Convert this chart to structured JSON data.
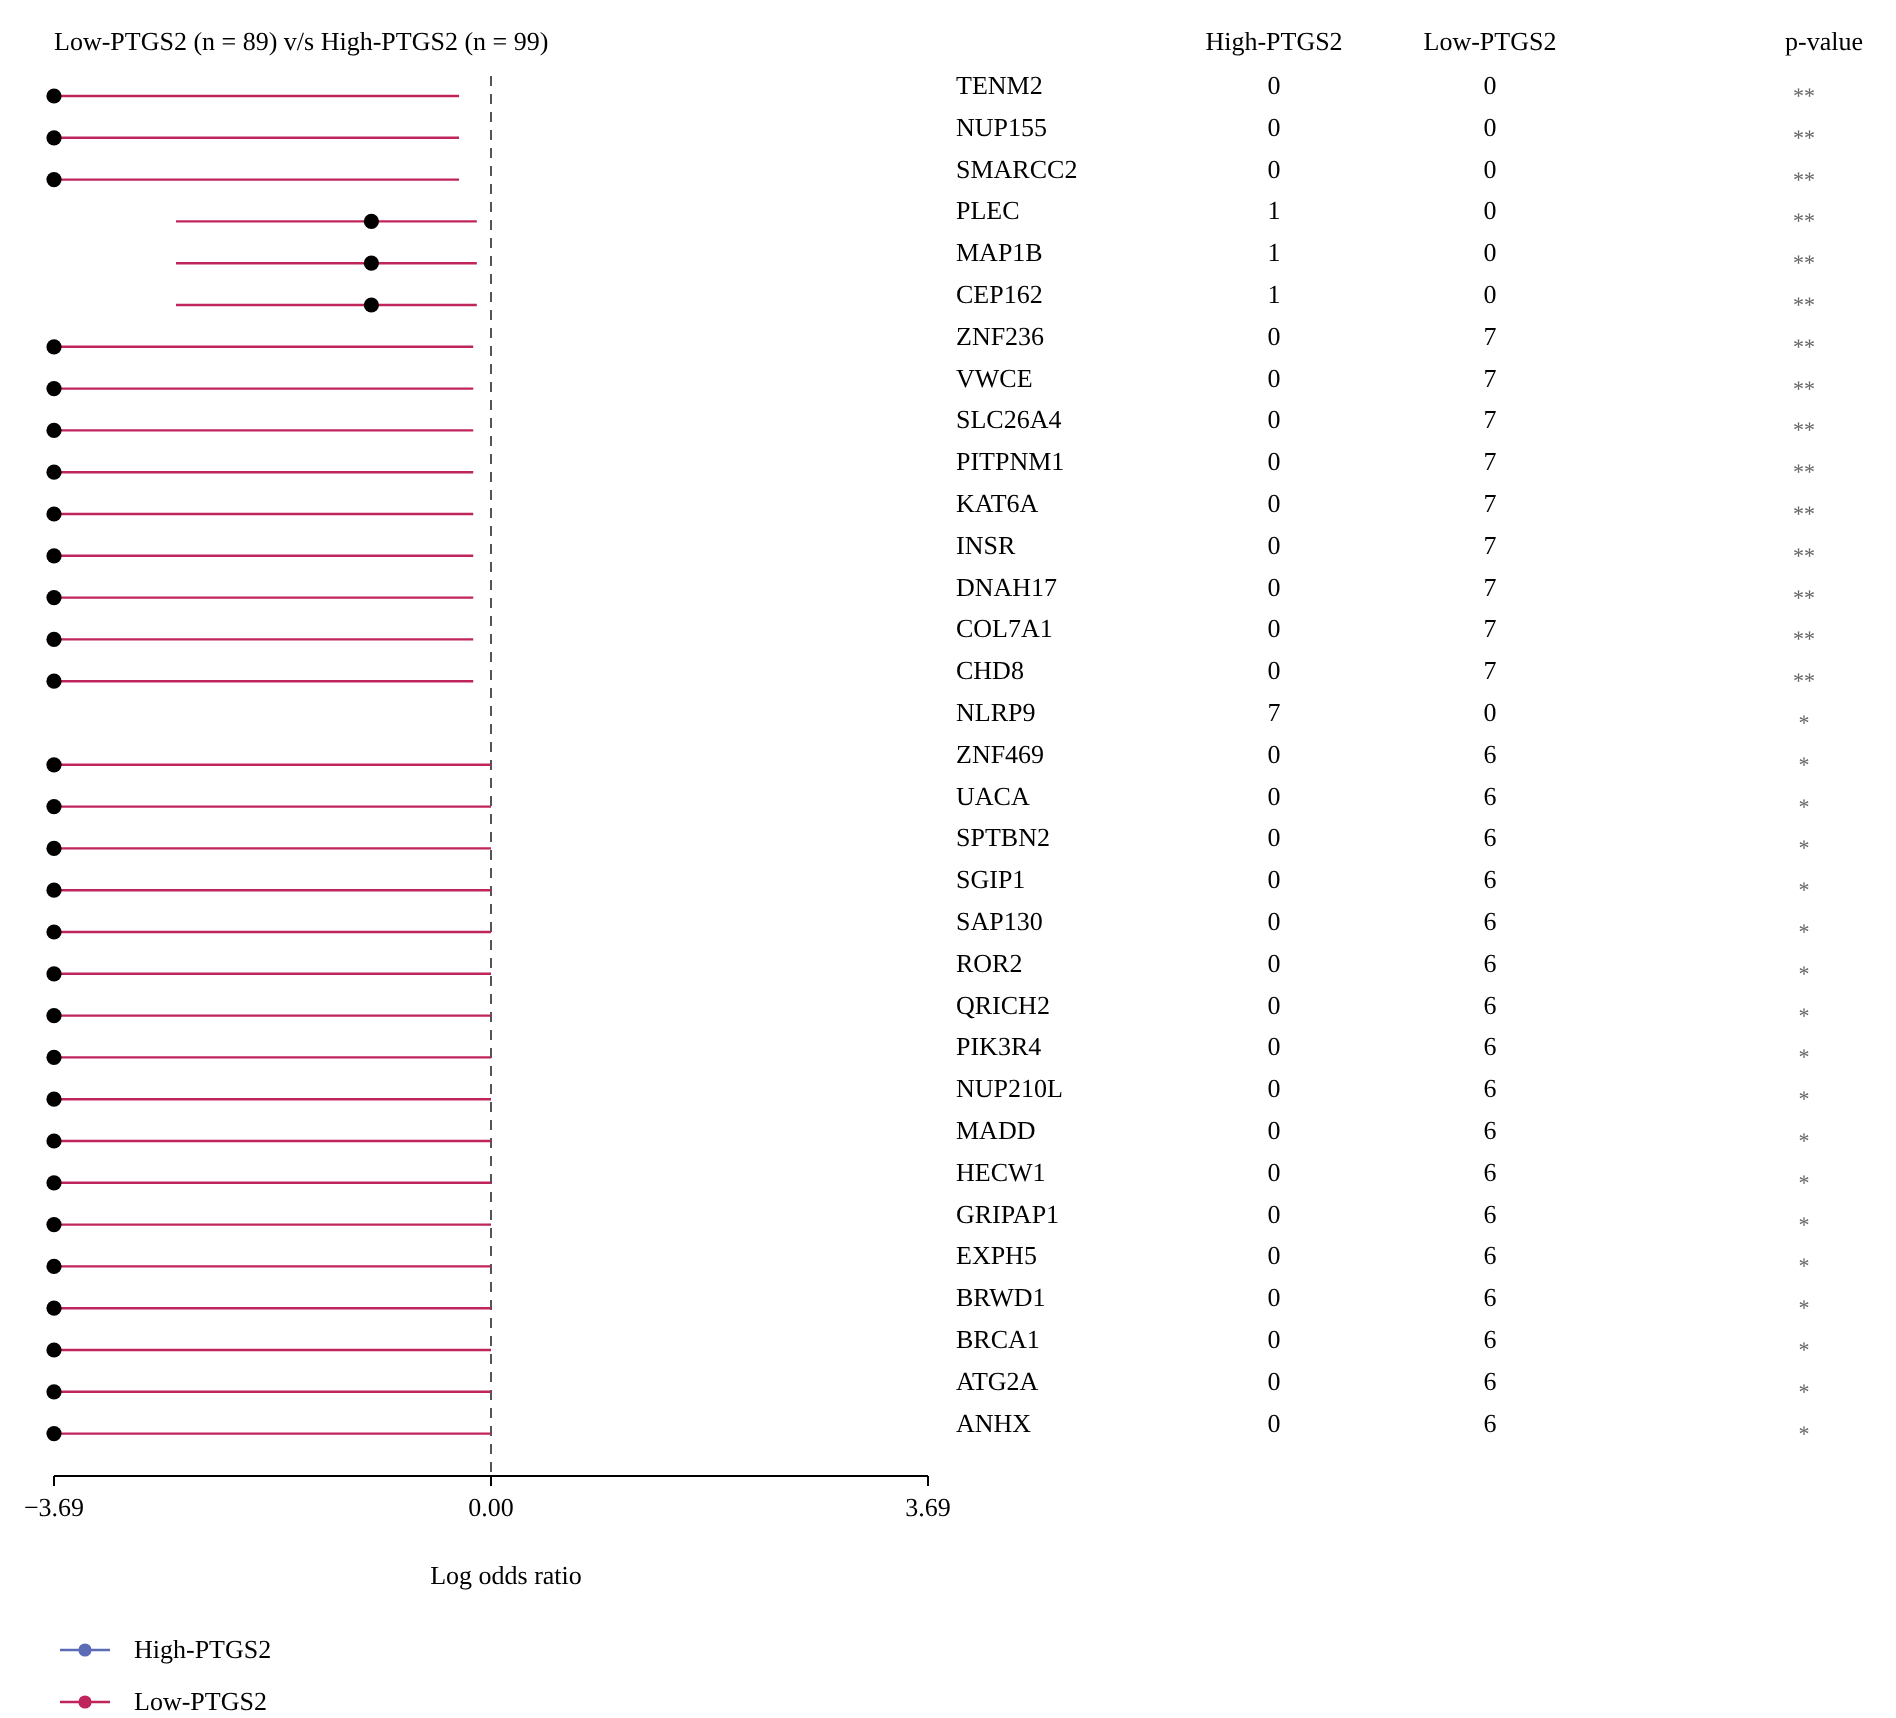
{
  "chart_data": {
    "type": "scatter",
    "orientation": "horizontal",
    "title": "Low-PTGS2 (n = 89) v/s High-PTGS2 (n = 99)",
    "xlabel": "Log odds ratio",
    "categories": [
      "TENM2",
      "NUP155",
      "SMARCC2",
      "PLEC",
      "MAP1B",
      "CEP162",
      "ZNF236",
      "VWCE",
      "SLC26A4",
      "PITPNM1",
      "KAT6A",
      "INSR",
      "DNAH17",
      "COL7A1",
      "CHD8",
      "NLRP9",
      "ZNF469",
      "UACA",
      "SPTBN2",
      "SGIP1",
      "SAP130",
      "ROR2",
      "QRICH2",
      "PIK3R4",
      "NUP210L",
      "MADD",
      "HECW1",
      "GRIPAP1",
      "EXPH5",
      "BRWD1",
      "BRCA1",
      "ATG2A",
      "ANHX"
    ],
    "series": [
      {
        "name": "High-PTGS2",
        "color": "#5b6bb5",
        "values": [
          null,
          null,
          null,
          null,
          null,
          null,
          null,
          null,
          null,
          null,
          null,
          null,
          null,
          null,
          null,
          null,
          null,
          null,
          null,
          null,
          null,
          null,
          null,
          null,
          null,
          null,
          null,
          null,
          null,
          null,
          null,
          null,
          null
        ]
      },
      {
        "name": "Low-PTGS2",
        "color": "#c0245c",
        "values": [
          -3.69,
          -3.69,
          -3.69,
          -1.01,
          -1.01,
          -1.01,
          -3.69,
          -3.69,
          -3.69,
          -3.69,
          -3.69,
          -3.69,
          -3.69,
          -3.69,
          -3.69,
          null,
          -3.69,
          -3.69,
          -3.69,
          -3.69,
          -3.69,
          -3.69,
          -3.69,
          -3.69,
          -3.69,
          -3.69,
          -3.69,
          -3.69,
          -3.69,
          -3.69,
          -3.69,
          -3.69,
          -3.69
        ],
        "colors": [
          "#000000",
          "#000000",
          "#000000",
          "#000000",
          "#000000",
          "#000000",
          "#000000",
          "#000000",
          "#000000",
          "#000000",
          "#000000",
          "#000000",
          "#000000",
          "#000000",
          "#000000",
          null,
          "#000000",
          "#000000",
          "#000000",
          "#000000",
          "#000000",
          "#000000",
          "#000000",
          "#000000",
          "#000000",
          "#000000",
          "#000000",
          "#000000",
          "#000000",
          "#000000",
          "#000000",
          "#000000",
          "#000000"
        ],
        "errors": [
          [
            -3.69,
            -0.27
          ],
          [
            -3.69,
            -0.27
          ],
          [
            -3.69,
            -0.27
          ],
          [
            -2.66,
            -0.12
          ],
          [
            -2.66,
            -0.12
          ],
          [
            -2.66,
            -0.12
          ],
          [
            -3.69,
            -0.15
          ],
          [
            -3.69,
            -0.15
          ],
          [
            -3.69,
            -0.15
          ],
          [
            -3.69,
            -0.15
          ],
          [
            -3.69,
            -0.15
          ],
          [
            -3.69,
            -0.15
          ],
          [
            -3.69,
            -0.15
          ],
          [
            -3.69,
            -0.15
          ],
          [
            -3.69,
            -0.15
          ],
          null,
          [
            -3.69,
            0
          ],
          [
            -3.69,
            0
          ],
          [
            -3.69,
            0
          ],
          [
            -3.69,
            0
          ],
          [
            -3.69,
            0
          ],
          [
            -3.69,
            0
          ],
          [
            -3.69,
            0
          ],
          [
            -3.69,
            0
          ],
          [
            -3.69,
            0
          ],
          [
            -3.69,
            0
          ],
          [
            -3.69,
            0
          ],
          [
            -3.69,
            0
          ],
          [
            -3.69,
            0
          ],
          [
            -3.69,
            0
          ],
          [
            -3.69,
            0
          ],
          [
            -3.69,
            0
          ],
          [
            -3.69,
            0
          ]
        ],
        "value_labels": [
          "**",
          "**",
          "**",
          "**",
          "**",
          "**",
          "**",
          "**",
          "**",
          "**",
          "**",
          "**",
          "**",
          "**",
          "**",
          "*",
          "*",
          "*",
          "*",
          "*",
          "*",
          "*",
          "*",
          "*",
          "*",
          "*",
          "*",
          "*",
          "*",
          "*",
          "*",
          "*",
          "*"
        ]
      }
    ],
    "annotations": [
      "High-PTGS2",
      "Low-PTGS2",
      "p-value",
      "0",
      "0",
      "0",
      "0",
      "0",
      "0",
      "1",
      "0",
      "1",
      "0",
      "1",
      "0",
      "0",
      "7",
      "0",
      "7",
      "0",
      "7",
      "0",
      "7",
      "0",
      "7",
      "0",
      "7",
      "0",
      "7",
      "0",
      "7",
      "0",
      "7",
      "7",
      "0",
      "0",
      "6",
      "0",
      "6",
      "0",
      "6",
      "0",
      "6",
      "0",
      "6",
      "0",
      "6",
      "0",
      "6",
      "0",
      "6",
      "0",
      "6",
      "0",
      "6",
      "0",
      "6",
      "0",
      "6",
      "0",
      "6",
      "0",
      "6",
      "0",
      "6",
      "0",
      "6",
      "0",
      "6"
    ],
    "xlim": [
      -3.69,
      3.69
    ],
    "xticks": [
      {
        "value": -3.69,
        "label": "−3.69"
      },
      {
        "value": 0,
        "label": "0.00"
      },
      {
        "value": 3.69,
        "label": "3.69"
      }
    ],
    "ref_lines": [
      {
        "axis": "x",
        "value": 0,
        "line_style": "dashed",
        "color": "#555555"
      }
    ],
    "marker": "circle",
    "legend": "bottom left"
  }
}
